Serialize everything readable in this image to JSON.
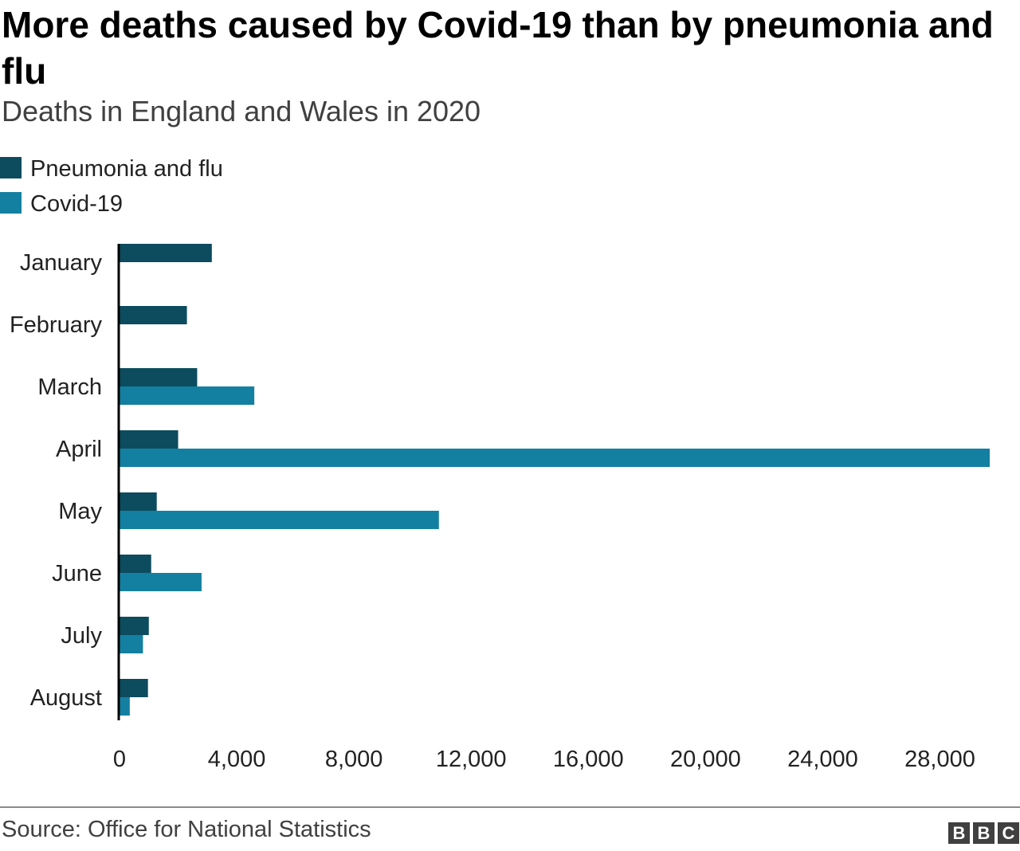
{
  "header": {
    "title": "More deaths caused by Covid-19 than by pneumonia and flu",
    "subtitle": "Deaths in England and Wales in 2020"
  },
  "footer": {
    "source": "Source: Office for National Statistics",
    "logo": [
      "B",
      "B",
      "C"
    ]
  },
  "colors": {
    "pneumonia": "#0d4b5e",
    "covid": "#1380a1",
    "axis": "#000000",
    "text": "#222222"
  },
  "chart_data": {
    "type": "bar",
    "orientation": "horizontal",
    "title": "More deaths caused by Covid-19 than by pneumonia and flu",
    "subtitle": "Deaths in England and Wales in 2020",
    "categories": [
      "January",
      "February",
      "March",
      "April",
      "May",
      "June",
      "July",
      "August"
    ],
    "series": [
      {
        "name": "Pneumonia and flu",
        "values": [
          3150,
          2300,
          2650,
          2000,
          1270,
          1080,
          1000,
          970
        ]
      },
      {
        "name": "Covid-19",
        "values": [
          0,
          0,
          4600,
          29700,
          10900,
          2800,
          800,
          350
        ]
      }
    ],
    "xlim": [
      0,
      29700
    ],
    "xticks": [
      0,
      4000,
      8000,
      12000,
      16000,
      20000,
      24000,
      28000
    ],
    "xtick_labels": [
      "0",
      "4,000",
      "8,000",
      "12,000",
      "16,000",
      "20,000",
      "24,000",
      "28,000"
    ],
    "grid": false,
    "legend_position": "top-left",
    "source": "Source: Office for National Statistics"
  }
}
